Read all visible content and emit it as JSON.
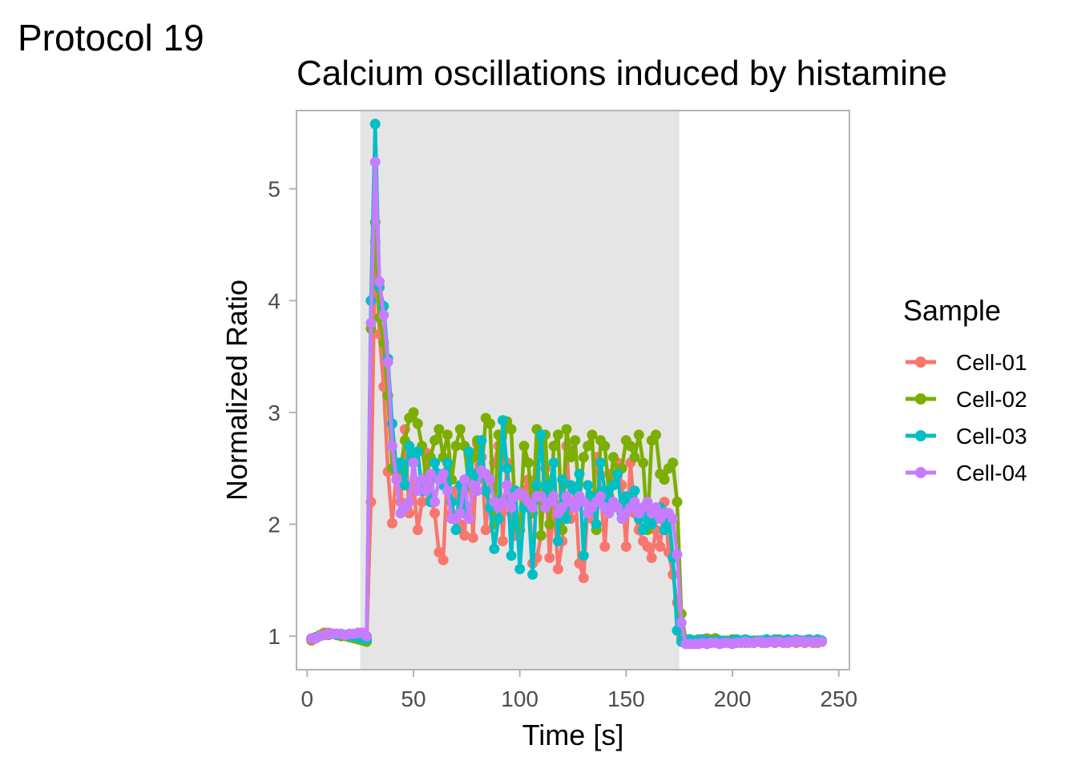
{
  "header": {
    "protocol_label": "Protocol 19"
  },
  "chart_data": {
    "type": "line",
    "title": "Calcium oscillations induced by histamine",
    "xlabel": "Time [s]",
    "ylabel": "Normalized Ratio",
    "xlim": [
      -5,
      255
    ],
    "ylim": [
      0.7,
      5.7
    ],
    "xticks": [
      0,
      50,
      100,
      150,
      200,
      250
    ],
    "yticks": [
      1,
      2,
      3,
      4,
      5
    ],
    "stimulus_window": [
      25,
      175
    ],
    "legend": {
      "title": "Sample",
      "placement": "right"
    },
    "grid": false,
    "series": [
      {
        "name": "Cell-01",
        "color": "#F8766D",
        "x": [
          2,
          4,
          6,
          8,
          10,
          12,
          14,
          16,
          18,
          20,
          22,
          24,
          26,
          28,
          30,
          32,
          34,
          36,
          38,
          40,
          42,
          44,
          46,
          48,
          50,
          52,
          54,
          56,
          58,
          60,
          62,
          64,
          66,
          68,
          70,
          72,
          74,
          76,
          78,
          80,
          82,
          84,
          86,
          88,
          90,
          92,
          94,
          96,
          98,
          100,
          102,
          104,
          106,
          108,
          110,
          112,
          114,
          116,
          118,
          120,
          122,
          124,
          126,
          128,
          130,
          132,
          134,
          136,
          138,
          140,
          142,
          144,
          146,
          148,
          150,
          152,
          154,
          156,
          158,
          160,
          162,
          164,
          166,
          168,
          170,
          172,
          174,
          176,
          178,
          180,
          182,
          184,
          186,
          188,
          190,
          192,
          194,
          196,
          198,
          200,
          202,
          204,
          206,
          208,
          210,
          212,
          214,
          216,
          218,
          220,
          222,
          224,
          226,
          228,
          230,
          232,
          234,
          236,
          238,
          240,
          242
        ],
        "values": [
          0.96,
          0.98,
          1.0,
          1.03,
          1.03,
          1.02,
          1.02,
          1.01,
          1.01,
          1.0,
          0.99,
          0.98,
          0.98,
          0.97,
          2.2,
          4.53,
          3.7,
          3.23,
          2.47,
          2.01,
          2.46,
          2.2,
          2.85,
          2.1,
          2.36,
          1.95,
          2.2,
          2.64,
          2.23,
          2.1,
          1.75,
          1.68,
          2.48,
          2.1,
          2.3,
          2.0,
          1.9,
          2.62,
          1.88,
          2.72,
          2.6,
          1.95,
          2.4,
          2.55,
          2.7,
          1.85,
          2.55,
          2.1,
          1.9,
          1.95,
          2.3,
          2.4,
          1.65,
          1.7,
          1.9,
          2.5,
          1.7,
          2.2,
          1.6,
          1.85,
          2.7,
          2.05,
          2.3,
          1.65,
          1.52,
          2.2,
          2.05,
          2.6,
          2.3,
          1.8,
          2.45,
          2.4,
          2.55,
          2.35,
          1.8,
          2.55,
          2.1,
          1.95,
          1.85,
          1.8,
          1.7,
          1.95,
          1.8,
          2.2,
          1.75,
          1.55,
          1.3,
          0.98,
          0.95,
          0.96,
          0.95,
          0.96,
          0.97,
          0.98,
          0.96,
          0.95,
          0.96,
          0.95,
          0.94,
          0.95,
          0.94,
          0.95,
          0.94,
          0.95,
          0.94,
          0.95,
          0.94,
          0.94,
          0.95,
          0.94,
          0.95,
          0.95,
          0.94,
          0.95,
          0.94,
          0.95,
          0.94,
          0.95,
          0.94,
          0.94,
          0.95
        ]
      },
      {
        "name": "Cell-02",
        "color": "#7CAE00",
        "x": [
          2,
          4,
          6,
          8,
          10,
          12,
          14,
          16,
          18,
          20,
          22,
          24,
          26,
          28,
          30,
          32,
          34,
          36,
          38,
          40,
          42,
          44,
          46,
          48,
          50,
          52,
          54,
          56,
          58,
          60,
          62,
          64,
          66,
          68,
          70,
          72,
          74,
          76,
          78,
          80,
          82,
          84,
          86,
          88,
          90,
          92,
          94,
          96,
          98,
          100,
          102,
          104,
          106,
          108,
          110,
          112,
          114,
          116,
          118,
          120,
          122,
          124,
          126,
          128,
          130,
          132,
          134,
          136,
          138,
          140,
          142,
          144,
          146,
          148,
          150,
          152,
          154,
          156,
          158,
          160,
          162,
          164,
          166,
          168,
          170,
          172,
          174,
          176,
          178,
          180,
          182,
          184,
          186,
          188,
          190,
          192,
          194,
          196,
          198,
          200,
          202,
          204,
          206,
          208,
          210,
          212,
          214,
          216,
          218,
          220,
          222,
          224,
          226,
          228,
          230,
          232,
          234,
          236,
          238,
          240,
          242
        ],
        "values": [
          0.97,
          0.99,
          1.01,
          1.02,
          1.01,
          1.02,
          1.01,
          1.0,
          1.0,
          0.99,
          0.98,
          0.97,
          0.96,
          0.95,
          3.75,
          4.7,
          3.85,
          3.62,
          3.15,
          2.5,
          2.55,
          2.5,
          2.75,
          2.95,
          3.0,
          2.9,
          2.7,
          2.4,
          2.6,
          2.75,
          2.85,
          2.6,
          2.8,
          2.4,
          2.7,
          2.85,
          2.7,
          2.35,
          2.6,
          2.75,
          2.45,
          2.95,
          2.9,
          2.0,
          2.8,
          2.6,
          2.92,
          2.85,
          2.0,
          1.95,
          2.7,
          2.55,
          2.1,
          2.85,
          1.9,
          2.8,
          2.0,
          2.7,
          2.8,
          1.95,
          2.85,
          2.6,
          2.75,
          2.2,
          2.6,
          2.7,
          2.8,
          1.95,
          2.75,
          2.7,
          2.25,
          2.6,
          2.45,
          2.5,
          2.75,
          2.7,
          2.6,
          2.8,
          2.55,
          1.95,
          2.75,
          2.8,
          2.45,
          2.4,
          2.5,
          2.55,
          2.2,
          1.2,
          0.97,
          0.97,
          0.96,
          0.97,
          0.96,
          0.97,
          0.97,
          0.98,
          0.96,
          0.95,
          0.96,
          0.97,
          0.96,
          0.95,
          0.96,
          0.95,
          0.96,
          0.96,
          0.96,
          0.95,
          0.96,
          0.96,
          0.97,
          0.96,
          0.96,
          0.95,
          0.96,
          0.96,
          0.96,
          0.97,
          0.96,
          0.95,
          0.96
        ]
      },
      {
        "name": "Cell-03",
        "color": "#00BFC4",
        "x": [
          2,
          4,
          6,
          8,
          10,
          12,
          14,
          16,
          18,
          20,
          22,
          24,
          26,
          28,
          30,
          32,
          34,
          36,
          38,
          40,
          42,
          44,
          46,
          48,
          50,
          52,
          54,
          56,
          58,
          60,
          62,
          64,
          66,
          68,
          70,
          72,
          74,
          76,
          78,
          80,
          82,
          84,
          86,
          88,
          90,
          92,
          94,
          96,
          98,
          100,
          102,
          104,
          106,
          108,
          110,
          112,
          114,
          116,
          118,
          120,
          122,
          124,
          126,
          128,
          130,
          132,
          134,
          136,
          138,
          140,
          142,
          144,
          146,
          148,
          150,
          152,
          154,
          156,
          158,
          160,
          162,
          164,
          166,
          168,
          170,
          172,
          174,
          176,
          178,
          180,
          182,
          184,
          186,
          188,
          190,
          192,
          194,
          196,
          198,
          200,
          202,
          204,
          206,
          208,
          210,
          212,
          214,
          216,
          218,
          220,
          222,
          224,
          226,
          228,
          230,
          232,
          234,
          236,
          238,
          240,
          242
        ],
        "values": [
          0.98,
          0.99,
          1.0,
          1.01,
          1.02,
          1.02,
          1.01,
          1.02,
          1.01,
          1.0,
          1.0,
          0.99,
          0.98,
          0.97,
          4.0,
          5.58,
          4.12,
          3.95,
          3.48,
          2.9,
          2.5,
          2.55,
          2.35,
          2.7,
          2.6,
          2.65,
          2.3,
          2.4,
          2.2,
          2.55,
          2.45,
          2.35,
          2.55,
          2.2,
          1.95,
          2.35,
          2.1,
          2.65,
          2.45,
          2.4,
          2.75,
          2.3,
          2.15,
          1.78,
          2.05,
          2.93,
          2.5,
          1.72,
          2.3,
          1.6,
          2.15,
          2.2,
          1.55,
          2.35,
          2.8,
          2.15,
          2.35,
          2.55,
          1.85,
          2.4,
          2.05,
          2.35,
          2.3,
          2.45,
          1.72,
          2.35,
          2.25,
          2.0,
          2.55,
          2.3,
          2.2,
          2.35,
          2.45,
          2.1,
          2.25,
          2.2,
          2.3,
          2.05,
          1.95,
          2.1,
          2.0,
          2.05,
          2.15,
          1.95,
          2.1,
          1.7,
          1.05,
          0.95,
          0.96,
          0.97,
          0.96,
          0.96,
          0.97,
          0.96,
          0.95,
          0.96,
          0.96,
          0.96,
          0.95,
          0.96,
          0.97,
          0.96,
          0.97,
          0.96,
          0.95,
          0.96,
          0.96,
          0.97,
          0.96,
          0.97,
          0.96,
          0.96,
          0.97,
          0.96,
          0.97,
          0.96,
          0.96,
          0.97,
          0.96,
          0.97,
          0.96
        ]
      },
      {
        "name": "Cell-04",
        "color": "#C77CFF",
        "x": [
          2,
          4,
          6,
          8,
          10,
          12,
          14,
          16,
          18,
          20,
          22,
          24,
          26,
          28,
          30,
          32,
          34,
          36,
          38,
          40,
          42,
          44,
          46,
          48,
          50,
          52,
          54,
          56,
          58,
          60,
          62,
          64,
          66,
          68,
          70,
          72,
          74,
          76,
          78,
          80,
          82,
          84,
          86,
          88,
          90,
          92,
          94,
          96,
          98,
          100,
          102,
          104,
          106,
          108,
          110,
          112,
          114,
          116,
          118,
          120,
          122,
          124,
          126,
          128,
          130,
          132,
          134,
          136,
          138,
          140,
          142,
          144,
          146,
          148,
          150,
          152,
          154,
          156,
          158,
          160,
          162,
          164,
          166,
          168,
          170,
          172,
          174,
          176,
          178,
          180,
          182,
          184,
          186,
          188,
          190,
          192,
          194,
          196,
          198,
          200,
          202,
          204,
          206,
          208,
          210,
          212,
          214,
          216,
          218,
          220,
          222,
          224,
          226,
          228,
          230,
          232,
          234,
          236,
          238,
          240,
          242
        ],
        "values": [
          0.98,
          0.98,
          1.0,
          1.01,
          1.02,
          1.02,
          1.02,
          1.02,
          1.01,
          1.02,
          1.02,
          1.03,
          1.03,
          1.0,
          3.8,
          5.24,
          4.17,
          3.87,
          3.45,
          2.7,
          2.4,
          2.1,
          2.15,
          2.2,
          2.55,
          2.3,
          2.4,
          2.3,
          2.45,
          2.2,
          2.4,
          2.45,
          2.3,
          2.05,
          2.05,
          2.1,
          2.4,
          2.05,
          2.35,
          2.3,
          2.48,
          2.45,
          2.4,
          2.2,
          2.15,
          2.2,
          2.35,
          2.15,
          2.25,
          2.28,
          2.25,
          2.2,
          2.15,
          2.25,
          2.25,
          2.15,
          2.2,
          2.25,
          2.1,
          2.15,
          2.25,
          2.2,
          2.15,
          2.25,
          2.2,
          2.1,
          2.15,
          2.2,
          2.25,
          2.15,
          2.1,
          2.2,
          2.15,
          2.05,
          2.1,
          2.15,
          2.2,
          2.1,
          2.15,
          2.2,
          2.1,
          2.15,
          2.05,
          2.1,
          2.1,
          2.05,
          1.73,
          1.12,
          0.93,
          0.93,
          0.93,
          0.93,
          0.94,
          0.93,
          0.94,
          0.94,
          0.93,
          0.94,
          0.94,
          0.93,
          0.94,
          0.94,
          0.95,
          0.94,
          0.94,
          0.95,
          0.95,
          0.94,
          0.95,
          0.95,
          0.95,
          0.94,
          0.95,
          0.95,
          0.96,
          0.95,
          0.95,
          0.95,
          0.95,
          0.95,
          0.95
        ]
      }
    ]
  }
}
